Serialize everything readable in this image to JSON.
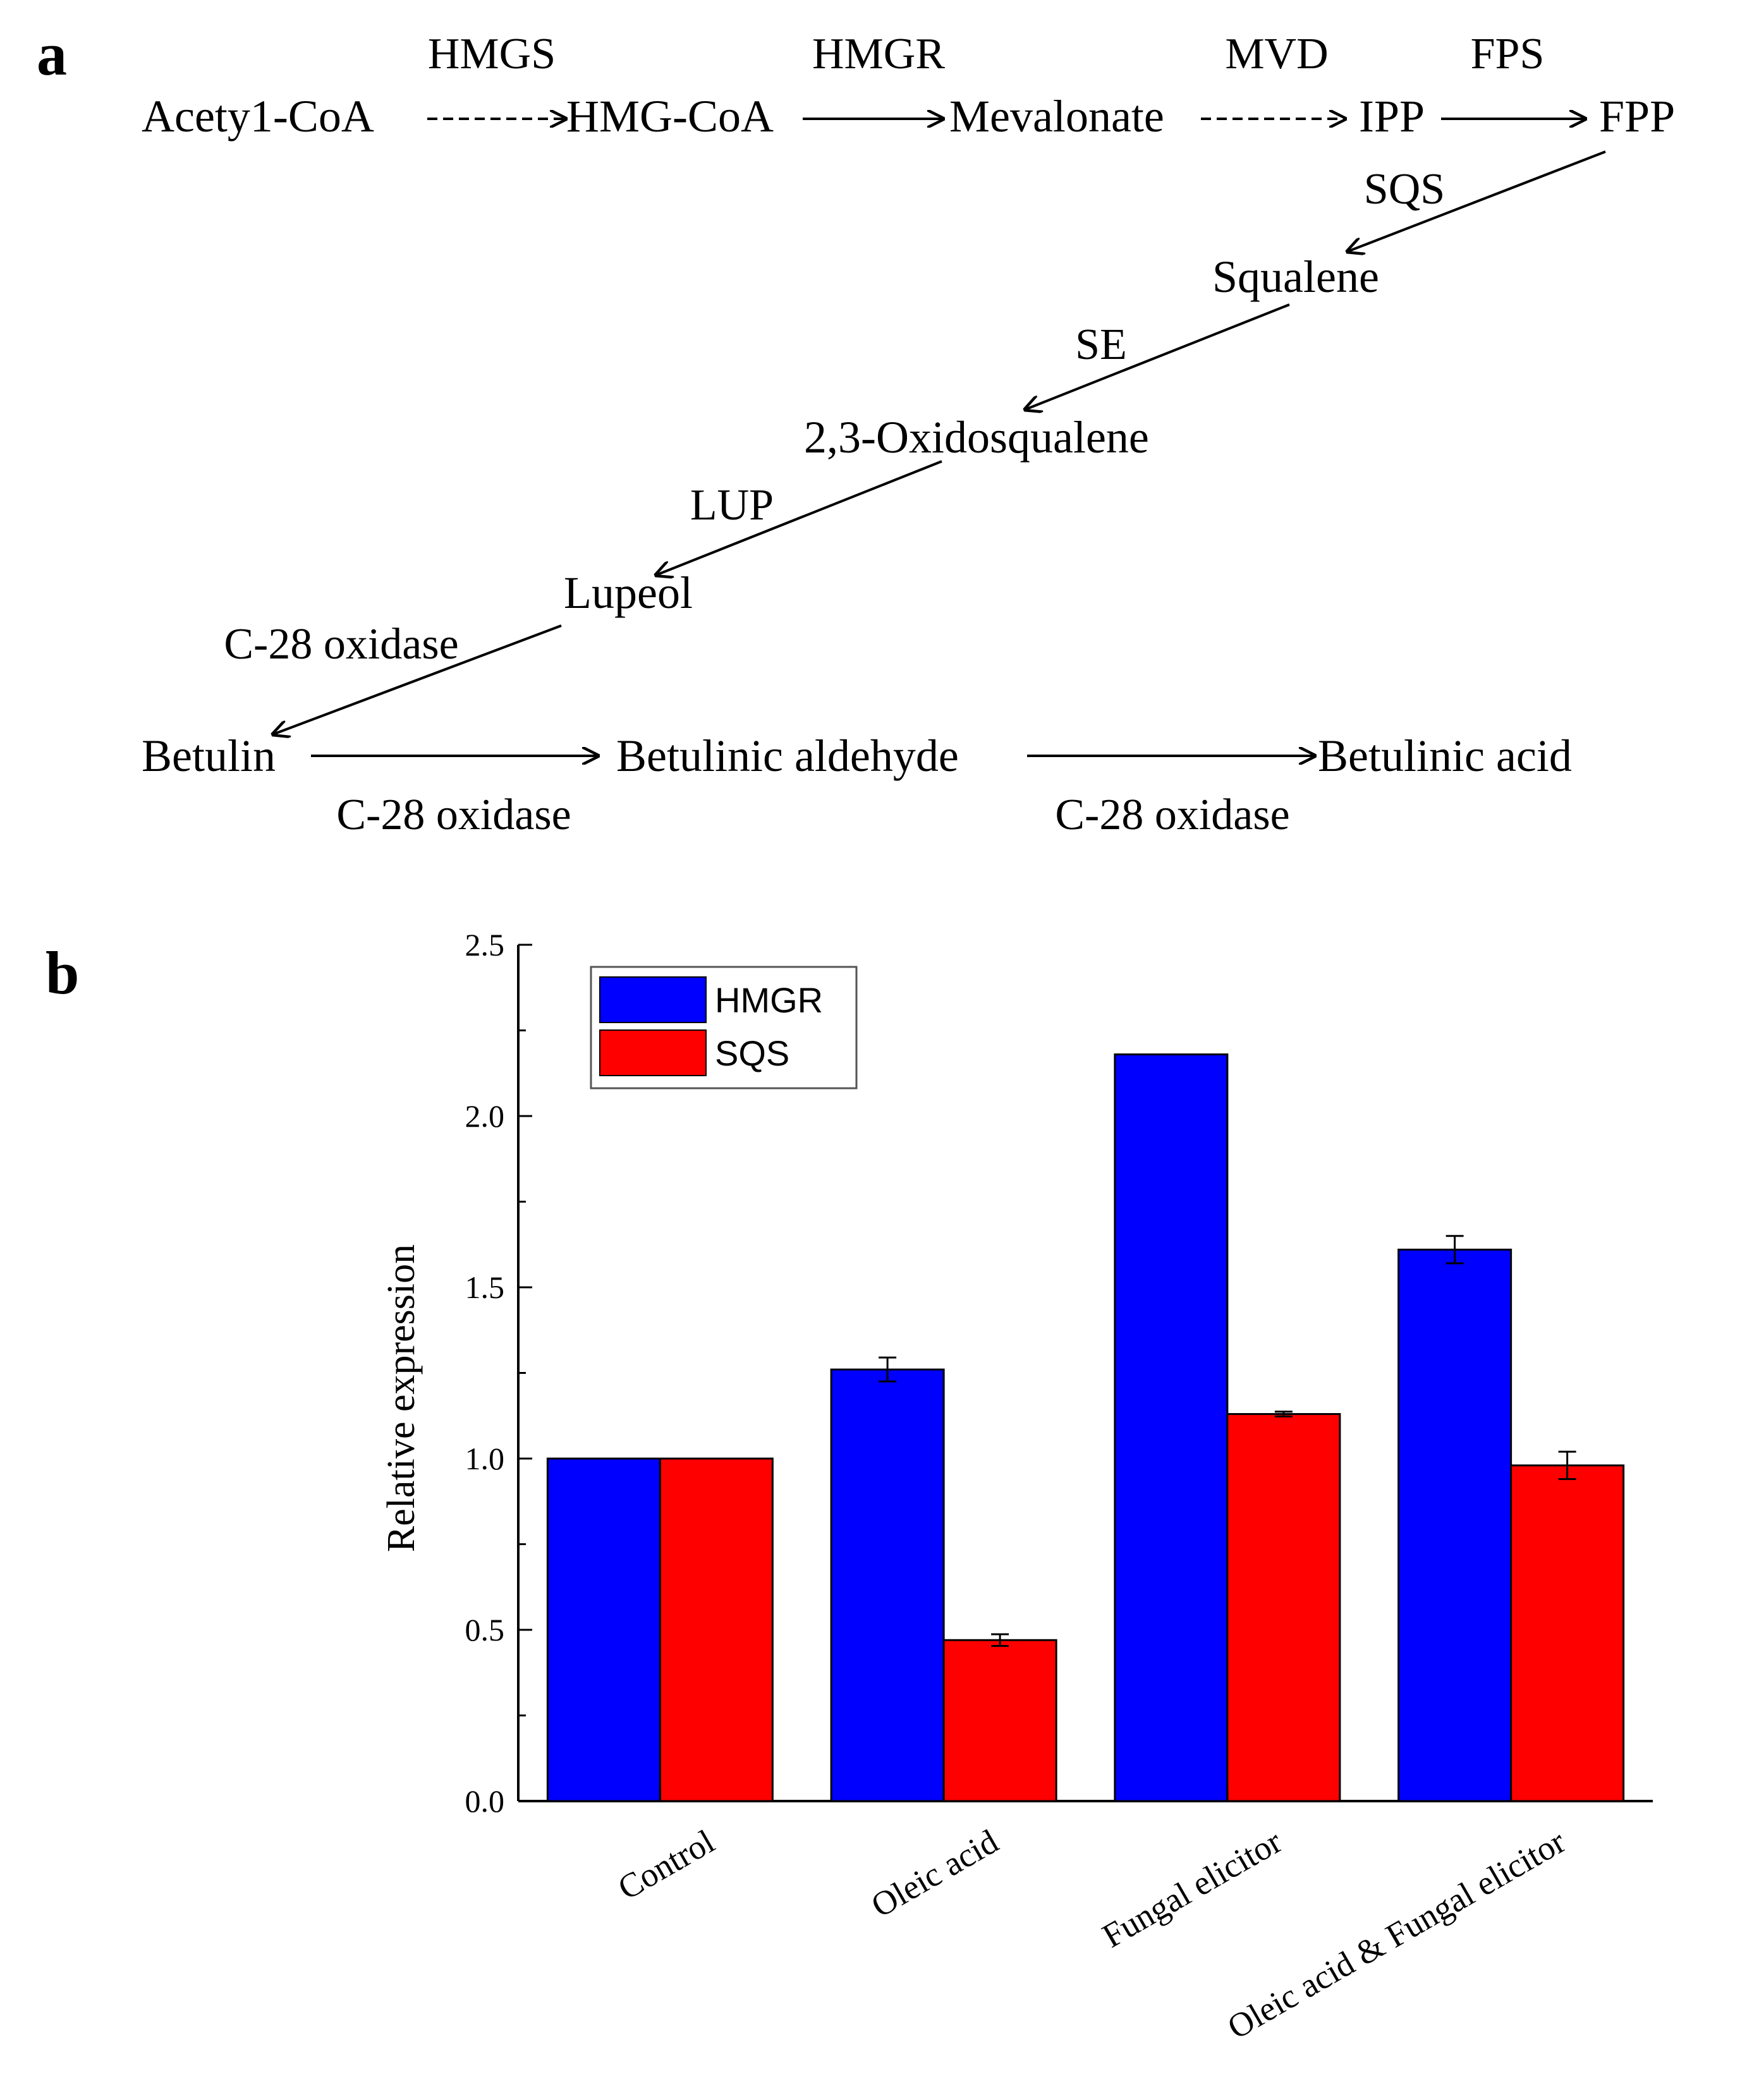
{
  "panels": {
    "a": "a",
    "b": "b"
  },
  "pathway": {
    "nodes": {
      "acetyl": "Acety1-CoA",
      "hmgcoa": "HMG-CoA",
      "mevalonate": "Mevalonate",
      "ipp": "IPP",
      "fpp": "FPP",
      "squalene": "Squalene",
      "oxidosqualene": "2,3-Oxidosqualene",
      "lupeol": "Lupeol",
      "betulin": "Betulin",
      "aldehyde": "Betulinic aldehyde",
      "acid": "Betulinic acid"
    },
    "enzymes": {
      "hmgs": "HMGS",
      "hmgr": "HMGR",
      "mvd": "MVD",
      "fps": "FPS",
      "sqs": "SQS",
      "se": "SE",
      "lup": "LUP",
      "c28_1": "C-28 oxidase",
      "c28_2": "C-28 oxidase",
      "c28_3": "C-28 oxidase"
    }
  },
  "chart_data": {
    "type": "bar",
    "title": "",
    "xlabel": "",
    "ylabel": "Relative expression",
    "ylim": [
      0,
      2.5
    ],
    "yticks": [
      0.0,
      0.5,
      1.0,
      1.5,
      2.0,
      2.5
    ],
    "ytick_labels": [
      "0.0",
      "0.5",
      "1.0",
      "1.5",
      "2.0",
      "2.5"
    ],
    "categories": [
      "Control",
      "Oleic acid",
      "Fungal elicitor",
      "Oleic acid & Fungal elicitor"
    ],
    "series": [
      {
        "name": "HMGR",
        "color": "#0000ff",
        "values": [
          1.0,
          1.26,
          2.18,
          1.61
        ],
        "errors": [
          0.0,
          0.035,
          0.0,
          0.04
        ]
      },
      {
        "name": "SQS",
        "color": "#ff0000",
        "values": [
          1.0,
          0.47,
          1.13,
          0.98
        ],
        "errors": [
          0.0,
          0.017,
          0.007,
          0.04
        ]
      }
    ],
    "legend_position": "top-left"
  }
}
